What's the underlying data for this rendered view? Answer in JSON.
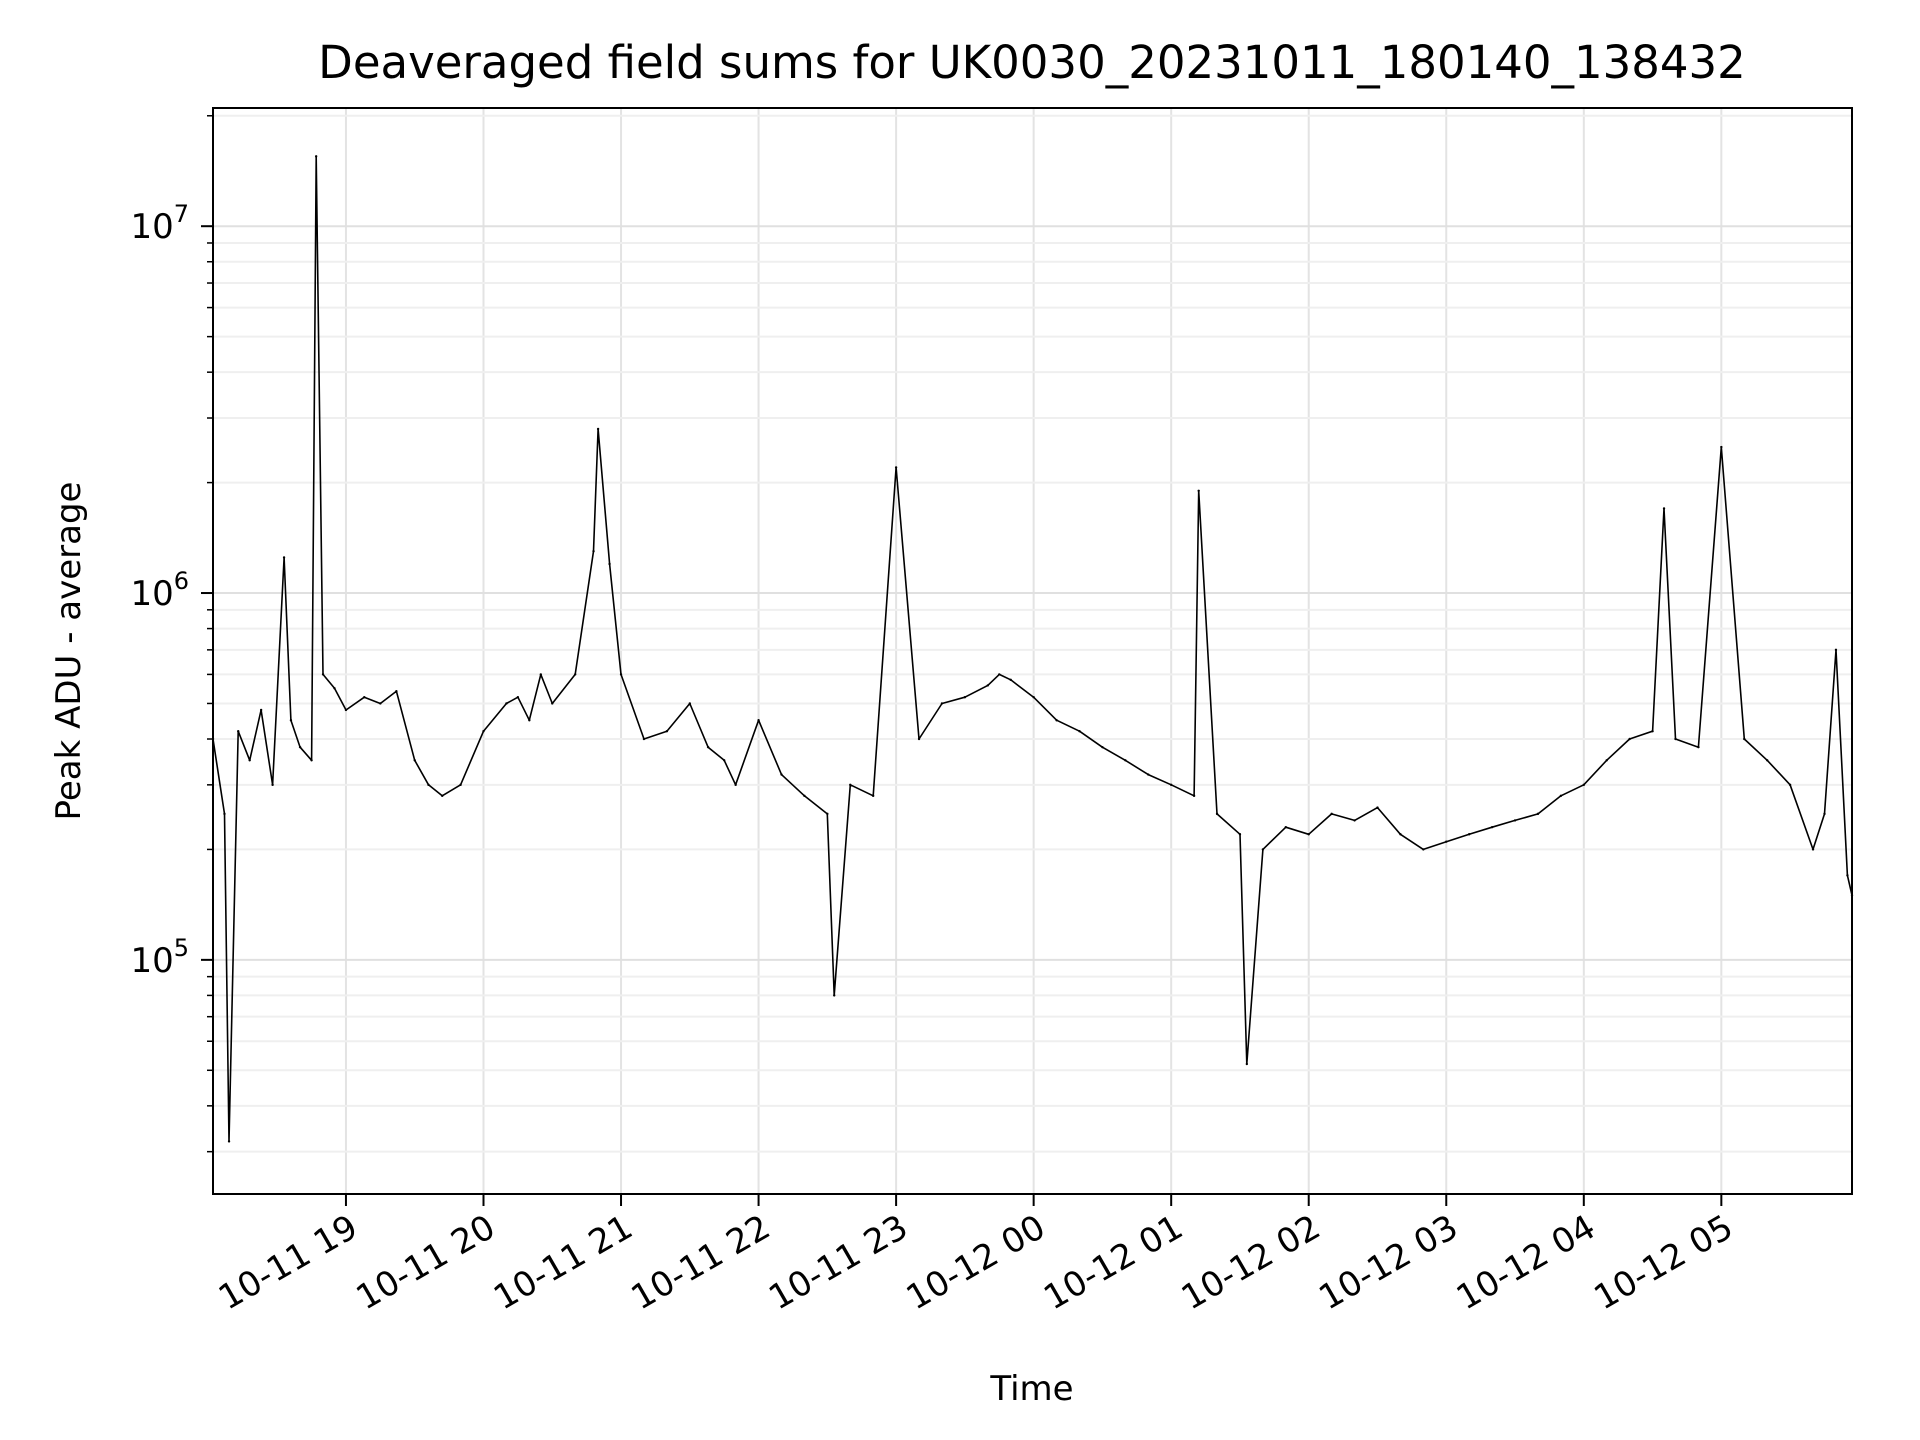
{
  "chart_data": {
    "type": "line",
    "title": "Deaveraged field sums for UK0030_20231011_180140_138432",
    "xlabel": "Time",
    "ylabel": "Peak ADU - average",
    "yscale": "log",
    "xlim": [
      "2023-10-11T18:02",
      "2023-10-12T05:57"
    ],
    "ylim": [
      23000,
      21000000
    ],
    "grid": true,
    "x_ticks": [
      {
        "value": "2023-10-11T19:00",
        "label": "10-11 19"
      },
      {
        "value": "2023-10-11T20:00",
        "label": "10-11 20"
      },
      {
        "value": "2023-10-11T21:00",
        "label": "10-11 21"
      },
      {
        "value": "2023-10-11T22:00",
        "label": "10-11 22"
      },
      {
        "value": "2023-10-11T23:00",
        "label": "10-11 23"
      },
      {
        "value": "2023-10-12T00:00",
        "label": "10-12 00"
      },
      {
        "value": "2023-10-12T01:00",
        "label": "10-12 01"
      },
      {
        "value": "2023-10-12T02:00",
        "label": "10-12 02"
      },
      {
        "value": "2023-10-12T03:00",
        "label": "10-12 03"
      },
      {
        "value": "2023-10-12T04:00",
        "label": "10-12 04"
      },
      {
        "value": "2023-10-12T05:00",
        "label": "10-12 05"
      }
    ],
    "y_ticks": [
      {
        "value": 100000,
        "base": "10",
        "exp": "5"
      },
      {
        "value": 1000000,
        "base": "10",
        "exp": "6"
      },
      {
        "value": 10000000,
        "base": "10",
        "exp": "7"
      }
    ],
    "series": [
      {
        "color": "#000000",
        "x": [
          "2023-10-11T18:02",
          "2023-10-11T18:07",
          "2023-10-11T18:09",
          "2023-10-11T18:13",
          "2023-10-11T18:18",
          "2023-10-11T18:23",
          "2023-10-11T18:28",
          "2023-10-11T18:33",
          "2023-10-11T18:36",
          "2023-10-11T18:40",
          "2023-10-11T18:45",
          "2023-10-11T18:47",
          "2023-10-11T18:50",
          "2023-10-11T18:55",
          "2023-10-11T19:00",
          "2023-10-11T19:08",
          "2023-10-11T19:15",
          "2023-10-11T19:22",
          "2023-10-11T19:30",
          "2023-10-11T19:36",
          "2023-10-11T19:42",
          "2023-10-11T19:50",
          "2023-10-11T20:00",
          "2023-10-11T20:10",
          "2023-10-11T20:15",
          "2023-10-11T20:20",
          "2023-10-11T20:25",
          "2023-10-11T20:30",
          "2023-10-11T20:40",
          "2023-10-11T20:48",
          "2023-10-11T20:50",
          "2023-10-11T20:55",
          "2023-10-11T21:00",
          "2023-10-11T21:10",
          "2023-10-11T21:20",
          "2023-10-11T21:30",
          "2023-10-11T21:38",
          "2023-10-11T21:45",
          "2023-10-11T21:50",
          "2023-10-11T22:00",
          "2023-10-11T22:10",
          "2023-10-11T22:20",
          "2023-10-11T22:30",
          "2023-10-11T22:33",
          "2023-10-11T22:40",
          "2023-10-11T22:50",
          "2023-10-11T23:00",
          "2023-10-11T23:10",
          "2023-10-11T23:20",
          "2023-10-11T23:30",
          "2023-10-11T23:40",
          "2023-10-11T23:45",
          "2023-10-11T23:50",
          "2023-10-12T00:00",
          "2023-10-12T00:10",
          "2023-10-12T00:20",
          "2023-10-12T00:30",
          "2023-10-12T00:40",
          "2023-10-12T00:50",
          "2023-10-12T01:00",
          "2023-10-12T01:10",
          "2023-10-12T01:12",
          "2023-10-12T01:20",
          "2023-10-12T01:30",
          "2023-10-12T01:33",
          "2023-10-12T01:40",
          "2023-10-12T01:50",
          "2023-10-12T02:00",
          "2023-10-12T02:10",
          "2023-10-12T02:20",
          "2023-10-12T02:30",
          "2023-10-12T02:40",
          "2023-10-12T02:50",
          "2023-10-12T03:00",
          "2023-10-12T03:10",
          "2023-10-12T03:20",
          "2023-10-12T03:30",
          "2023-10-12T03:40",
          "2023-10-12T03:50",
          "2023-10-12T04:00",
          "2023-10-12T04:10",
          "2023-10-12T04:20",
          "2023-10-12T04:30",
          "2023-10-12T04:35",
          "2023-10-12T04:40",
          "2023-10-12T04:50",
          "2023-10-12T05:00",
          "2023-10-12T05:10",
          "2023-10-12T05:20",
          "2023-10-12T05:30",
          "2023-10-12T05:40",
          "2023-10-12T05:45",
          "2023-10-12T05:50",
          "2023-10-12T05:55",
          "2023-10-12T05:57"
        ],
        "y": [
          400000,
          250000,
          32000,
          420000,
          350000,
          480000,
          300000,
          1250000,
          450000,
          380000,
          350000,
          15500000,
          600000,
          550000,
          480000,
          520000,
          500000,
          540000,
          350000,
          300000,
          280000,
          300000,
          420000,
          500000,
          520000,
          450000,
          600000,
          500000,
          600000,
          1300000,
          2800000,
          1200000,
          600000,
          400000,
          420000,
          500000,
          380000,
          350000,
          300000,
          450000,
          320000,
          280000,
          250000,
          80000,
          300000,
          280000,
          2200000,
          400000,
          500000,
          520000,
          560000,
          600000,
          580000,
          520000,
          450000,
          420000,
          380000,
          350000,
          320000,
          300000,
          280000,
          1900000,
          250000,
          220000,
          52000,
          200000,
          230000,
          220000,
          250000,
          240000,
          260000,
          220000,
          200000,
          210000,
          220000,
          230000,
          240000,
          250000,
          280000,
          300000,
          350000,
          400000,
          420000,
          1700000,
          400000,
          380000,
          2500000,
          400000,
          350000,
          300000,
          200000,
          250000,
          700000,
          170000,
          150000
        ]
      }
    ]
  }
}
